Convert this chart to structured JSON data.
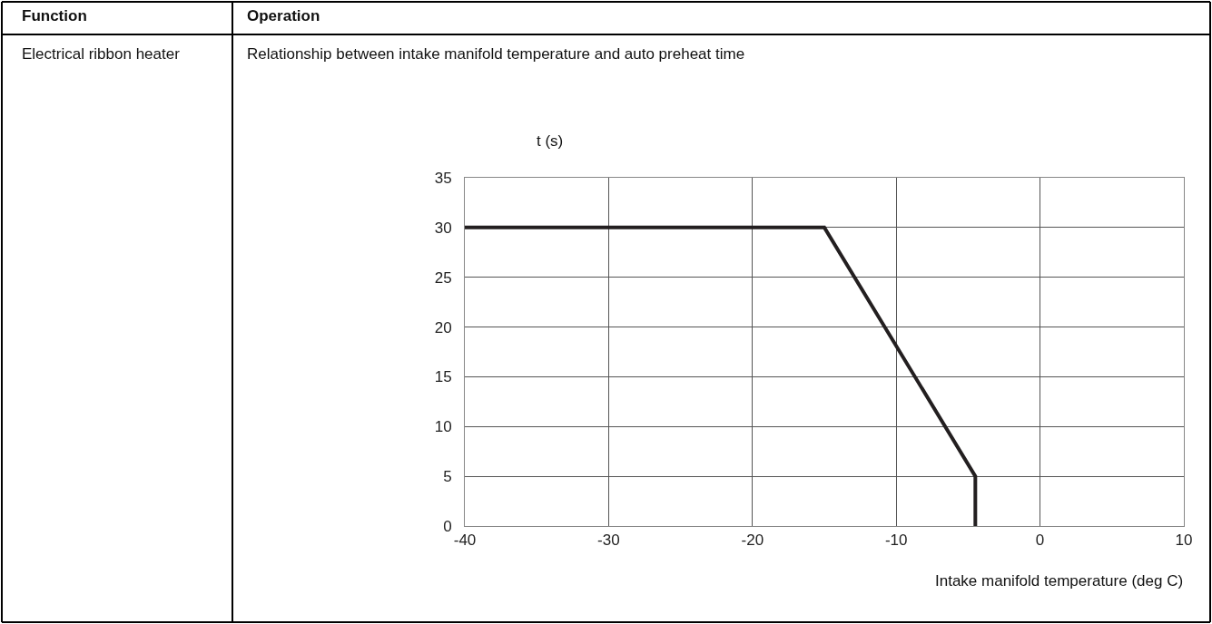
{
  "chart_data": {
    "type": "line",
    "title": "Relationship between intake manifold temperature and auto preheat time",
    "xlabel": "Intake manifold temperature (deg C)",
    "ylabel": "t (s)",
    "annotations": [
      "Function",
      "Operation",
      "Electrical ribbon heater"
    ],
    "x": [
      -40,
      -15,
      -4.5,
      -4.5
    ],
    "series": [
      {
        "color": "#231f20",
        "values": [
          30,
          30,
          5,
          0
        ]
      }
    ],
    "xlim": [
      -40,
      10
    ],
    "xticks": [
      -40,
      -30,
      -20,
      -10,
      0,
      10
    ],
    "ylim": [
      0,
      35
    ],
    "yticks": [
      0,
      5,
      10,
      15,
      20,
      25,
      30,
      35
    ],
    "grid": true,
    "marker": "none",
    "line_style": "solid"
  }
}
